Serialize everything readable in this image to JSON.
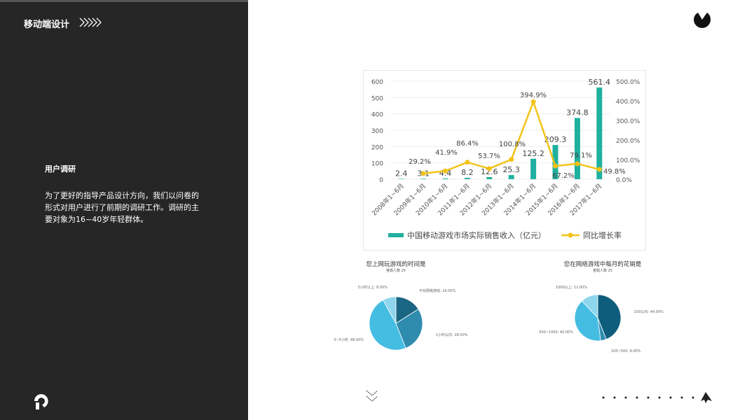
{
  "left_panel": {
    "title": "移动端设计",
    "heading": "用户调研",
    "paragraph": " 为了更好的指导产品设计方向，我们以问卷的形式对用户进行了前期的调研工作。调研的主要对象为16~40岁年轻群体。"
  },
  "chart_data": [
    {
      "type": "bar+line",
      "categories": [
        "2008年1~6月",
        "2009年1~6月",
        "2010年1~6月",
        "2011年1~6月",
        "2012年1~6月",
        "2013年1~6月",
        "2014年1~6月",
        "2015年1~6月",
        "2016年1~6月",
        "2017年1~6月"
      ],
      "series": [
        {
          "name": "中国移动游戏市场实际销售收入（亿元）",
          "type": "bar",
          "axis": "left",
          "color": "#1fb0a0",
          "values": [
            2.4,
            3.1,
            4.4,
            8.2,
            12.6,
            25.3,
            125.2,
            209.3,
            374.8,
            561.4
          ],
          "labels": [
            "2.4",
            "3.1",
            "4.4",
            "8.2",
            "12.6",
            "25.3",
            "125.2",
            "209.3",
            "374.8",
            "561.4"
          ]
        },
        {
          "name": "同比增长率",
          "type": "line",
          "axis": "right",
          "color": "#f2c318",
          "values": [
            null,
            29.2,
            41.9,
            86.4,
            53.7,
            100.8,
            394.9,
            67.2,
            79.1,
            49.8
          ],
          "labels": [
            "",
            "29.2%",
            "41.9%",
            "86.4%",
            "53.7%",
            "100.8%",
            "394.9%",
            "67.2%",
            "79.1%",
            "49.8%"
          ]
        }
      ],
      "ylim": [
        0,
        600
      ],
      "yticks": [
        "0",
        "100",
        "200",
        "300",
        "400",
        "500",
        "600"
      ],
      "y2lim": [
        0,
        500
      ],
      "y2ticks": [
        "0.0%",
        "100.0%",
        "200.0%",
        "300.0%",
        "400.0%",
        "500.0%"
      ],
      "legend": "bottom",
      "grid": true
    },
    {
      "type": "pie",
      "title": "您上网玩游戏的时间是",
      "subtitle": "答题人数 25",
      "slices": [
        {
          "label": "不玩网络游戏: 16.00%",
          "value": 16,
          "color": "#1a6683"
        },
        {
          "label": "1小时以内: 28.00%",
          "value": 28,
          "color": "#2f8cae"
        },
        {
          "label": "3~5小时: 48.00%",
          "value": 48,
          "color": "#45bde2"
        },
        {
          "label": "5小时以上: 8.00%",
          "value": 8,
          "color": "#8fd5ee"
        }
      ]
    },
    {
      "type": "pie",
      "title": "您在网络游戏中每月的花销是",
      "subtitle": "答题人数 25",
      "slices": [
        {
          "label": "100以内: 44.00%",
          "value": 44,
          "color": "#0f5d7c"
        },
        {
          "label": "100~500: 4.00%",
          "value": 4,
          "color": "#2f8cae"
        },
        {
          "label": "500~1000: 40.00%",
          "value": 40,
          "color": "#45bde2"
        },
        {
          "label": "1000以上: 12.00%",
          "value": 12,
          "color": "#8fd5ee"
        }
      ]
    }
  ]
}
